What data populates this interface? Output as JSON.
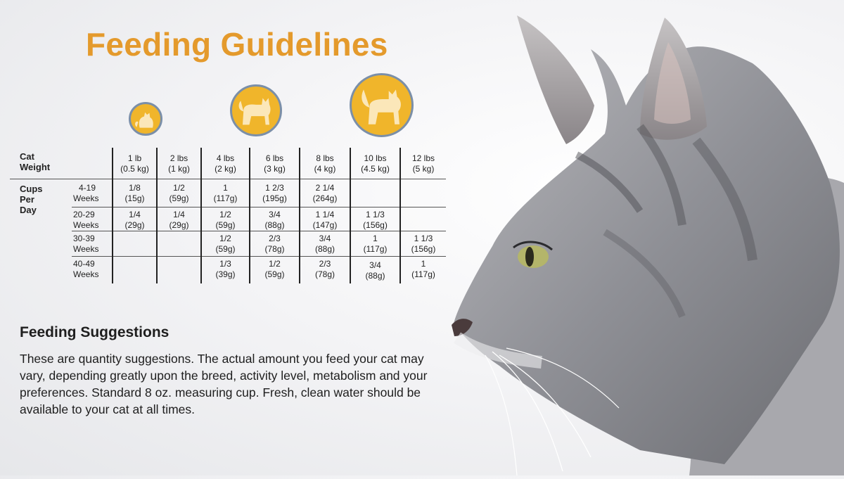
{
  "title": "Feeding Guidelines",
  "colors": {
    "accent": "#e49a2c",
    "badge_fill": "#f0b52b",
    "badge_ring": "#7b8fa8"
  },
  "icons": [
    "cat-small-icon",
    "cat-medium-icon",
    "cat-large-icon"
  ],
  "table": {
    "weight_label": [
      "Cat",
      "Weight"
    ],
    "cups_label": [
      "Cups",
      "Per Day"
    ],
    "columns": [
      [
        "1 lb",
        "(0.5 kg)"
      ],
      [
        "2 lbs",
        "(1 kg)"
      ],
      [
        "4 lbs",
        "(2 kg)"
      ],
      [
        "6 lbs",
        "(3 kg)"
      ],
      [
        "8 lbs",
        "(4 kg)"
      ],
      [
        "10 lbs",
        "(4.5 kg)"
      ],
      [
        "12 lbs",
        "(5 kg)"
      ]
    ],
    "rows": [
      {
        "age": [
          "4-19",
          "Weeks"
        ],
        "cells": [
          [
            "1/8",
            "(15g)"
          ],
          [
            "1/2",
            "(59g)"
          ],
          [
            "1",
            "(117g)"
          ],
          [
            "1 2/3",
            "(195g)"
          ],
          [
            "2 1/4",
            "(264g)"
          ],
          [
            "",
            ""
          ],
          [
            "",
            ""
          ]
        ]
      },
      {
        "age": [
          "20-29",
          "Weeks"
        ],
        "cells": [
          [
            "1/4",
            "(29g)"
          ],
          [
            "1/4",
            "(29g)"
          ],
          [
            "1/2",
            "(59g)"
          ],
          [
            "3/4",
            "(88g)"
          ],
          [
            "1 1/4",
            "(147g)"
          ],
          [
            "1 1/3",
            "(156g)"
          ],
          [
            "",
            ""
          ]
        ]
      },
      {
        "age": [
          "30-39",
          "Weeks"
        ],
        "cells": [
          [
            "",
            ""
          ],
          [
            "",
            ""
          ],
          [
            "1/2",
            "(59g)"
          ],
          [
            "2/3",
            "(78g)"
          ],
          [
            "3/4",
            "(88g)"
          ],
          [
            "1",
            "(117g)"
          ],
          [
            "1 1/3",
            "(156g)"
          ]
        ]
      },
      {
        "age": [
          "40-49",
          "Weeks"
        ],
        "cells": [
          [
            "",
            ""
          ],
          [
            "",
            ""
          ],
          [
            "1/3",
            "(39g)"
          ],
          [
            "1/2",
            "(59g)"
          ],
          [
            "2/3",
            "(78g)"
          ],
          [
            "3/4",
            "(88g)"
          ],
          [
            "1",
            "(117g)"
          ]
        ]
      }
    ]
  },
  "suggestions": {
    "title": "Feeding Suggestions",
    "body": "These are quantity suggestions. The actual amount you feed your cat may vary, depending greatly upon the breed, activity level, metabolism and your preferences. Standard 8 oz. measuring cup. Fresh, clean water should be available to your cat at all times."
  }
}
